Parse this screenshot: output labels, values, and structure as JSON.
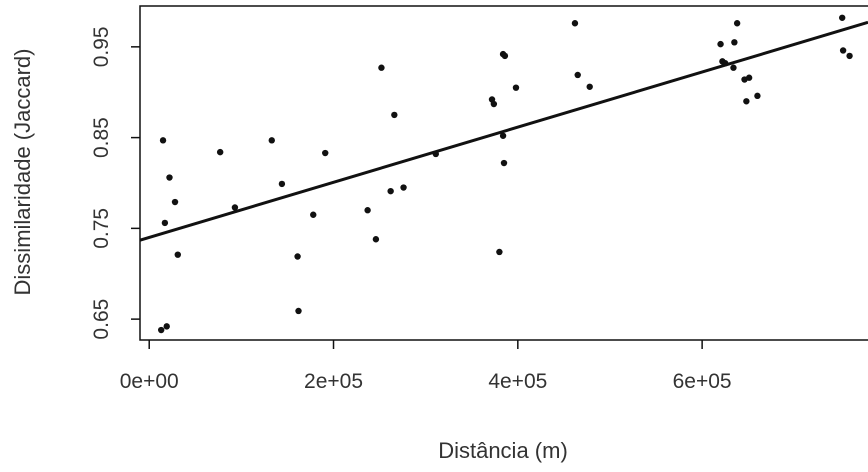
{
  "chart_data": {
    "type": "scatter",
    "xlabel": "Distância (m)",
    "ylabel": "Dissimilaridade (Jaccard)",
    "xlim": [
      -10000,
      780000
    ],
    "ylim": [
      0.627,
      0.995
    ],
    "x_ticks": [
      0,
      200000,
      400000,
      600000
    ],
    "x_tick_labels": [
      "0e+00",
      "2e+05",
      "4e+05",
      "6e+05"
    ],
    "y_ticks": [
      0.65,
      0.75,
      0.85,
      0.95
    ],
    "y_tick_labels": [
      "0.65",
      "0.75",
      "0.85",
      "0.95"
    ],
    "grid": false,
    "frame": "left, top, bottom closed; right side cropped",
    "point_color": "#111111",
    "trendline": {
      "type": "linear",
      "color": "#111111",
      "y_at_xmin": 0.737,
      "y_at_xmax": 0.977
    },
    "points": [
      {
        "x": 15000,
        "y": 0.847
      },
      {
        "x": 17000,
        "y": 0.756
      },
      {
        "x": 13000,
        "y": 0.638
      },
      {
        "x": 19000,
        "y": 0.642
      },
      {
        "x": 22000,
        "y": 0.806
      },
      {
        "x": 28000,
        "y": 0.779
      },
      {
        "x": 31000,
        "y": 0.721
      },
      {
        "x": 77000,
        "y": 0.834
      },
      {
        "x": 93000,
        "y": 0.773
      },
      {
        "x": 133000,
        "y": 0.847
      },
      {
        "x": 144000,
        "y": 0.799
      },
      {
        "x": 161000,
        "y": 0.719
      },
      {
        "x": 162000,
        "y": 0.659
      },
      {
        "x": 178000,
        "y": 0.765
      },
      {
        "x": 191000,
        "y": 0.833
      },
      {
        "x": 237000,
        "y": 0.77
      },
      {
        "x": 246000,
        "y": 0.738
      },
      {
        "x": 252000,
        "y": 0.927
      },
      {
        "x": 262000,
        "y": 0.791
      },
      {
        "x": 266000,
        "y": 0.875
      },
      {
        "x": 276000,
        "y": 0.795
      },
      {
        "x": 311000,
        "y": 0.832
      },
      {
        "x": 372000,
        "y": 0.892
      },
      {
        "x": 374000,
        "y": 0.887
      },
      {
        "x": 380000,
        "y": 0.724
      },
      {
        "x": 384000,
        "y": 0.942
      },
      {
        "x": 386000,
        "y": 0.94
      },
      {
        "x": 384000,
        "y": 0.852
      },
      {
        "x": 385000,
        "y": 0.822
      },
      {
        "x": 398000,
        "y": 0.905
      },
      {
        "x": 462000,
        "y": 0.976
      },
      {
        "x": 465000,
        "y": 0.919
      },
      {
        "x": 478000,
        "y": 0.906
      },
      {
        "x": 620000,
        "y": 0.953
      },
      {
        "x": 622000,
        "y": 0.934
      },
      {
        "x": 625000,
        "y": 0.932
      },
      {
        "x": 634000,
        "y": 0.927
      },
      {
        "x": 635000,
        "y": 0.955
      },
      {
        "x": 638000,
        "y": 0.976
      },
      {
        "x": 646000,
        "y": 0.914
      },
      {
        "x": 651000,
        "y": 0.916
      },
      {
        "x": 648000,
        "y": 0.89
      },
      {
        "x": 660000,
        "y": 0.896
      },
      {
        "x": 752000,
        "y": 0.982
      },
      {
        "x": 753000,
        "y": 0.946
      },
      {
        "x": 760000,
        "y": 0.94
      }
    ]
  }
}
